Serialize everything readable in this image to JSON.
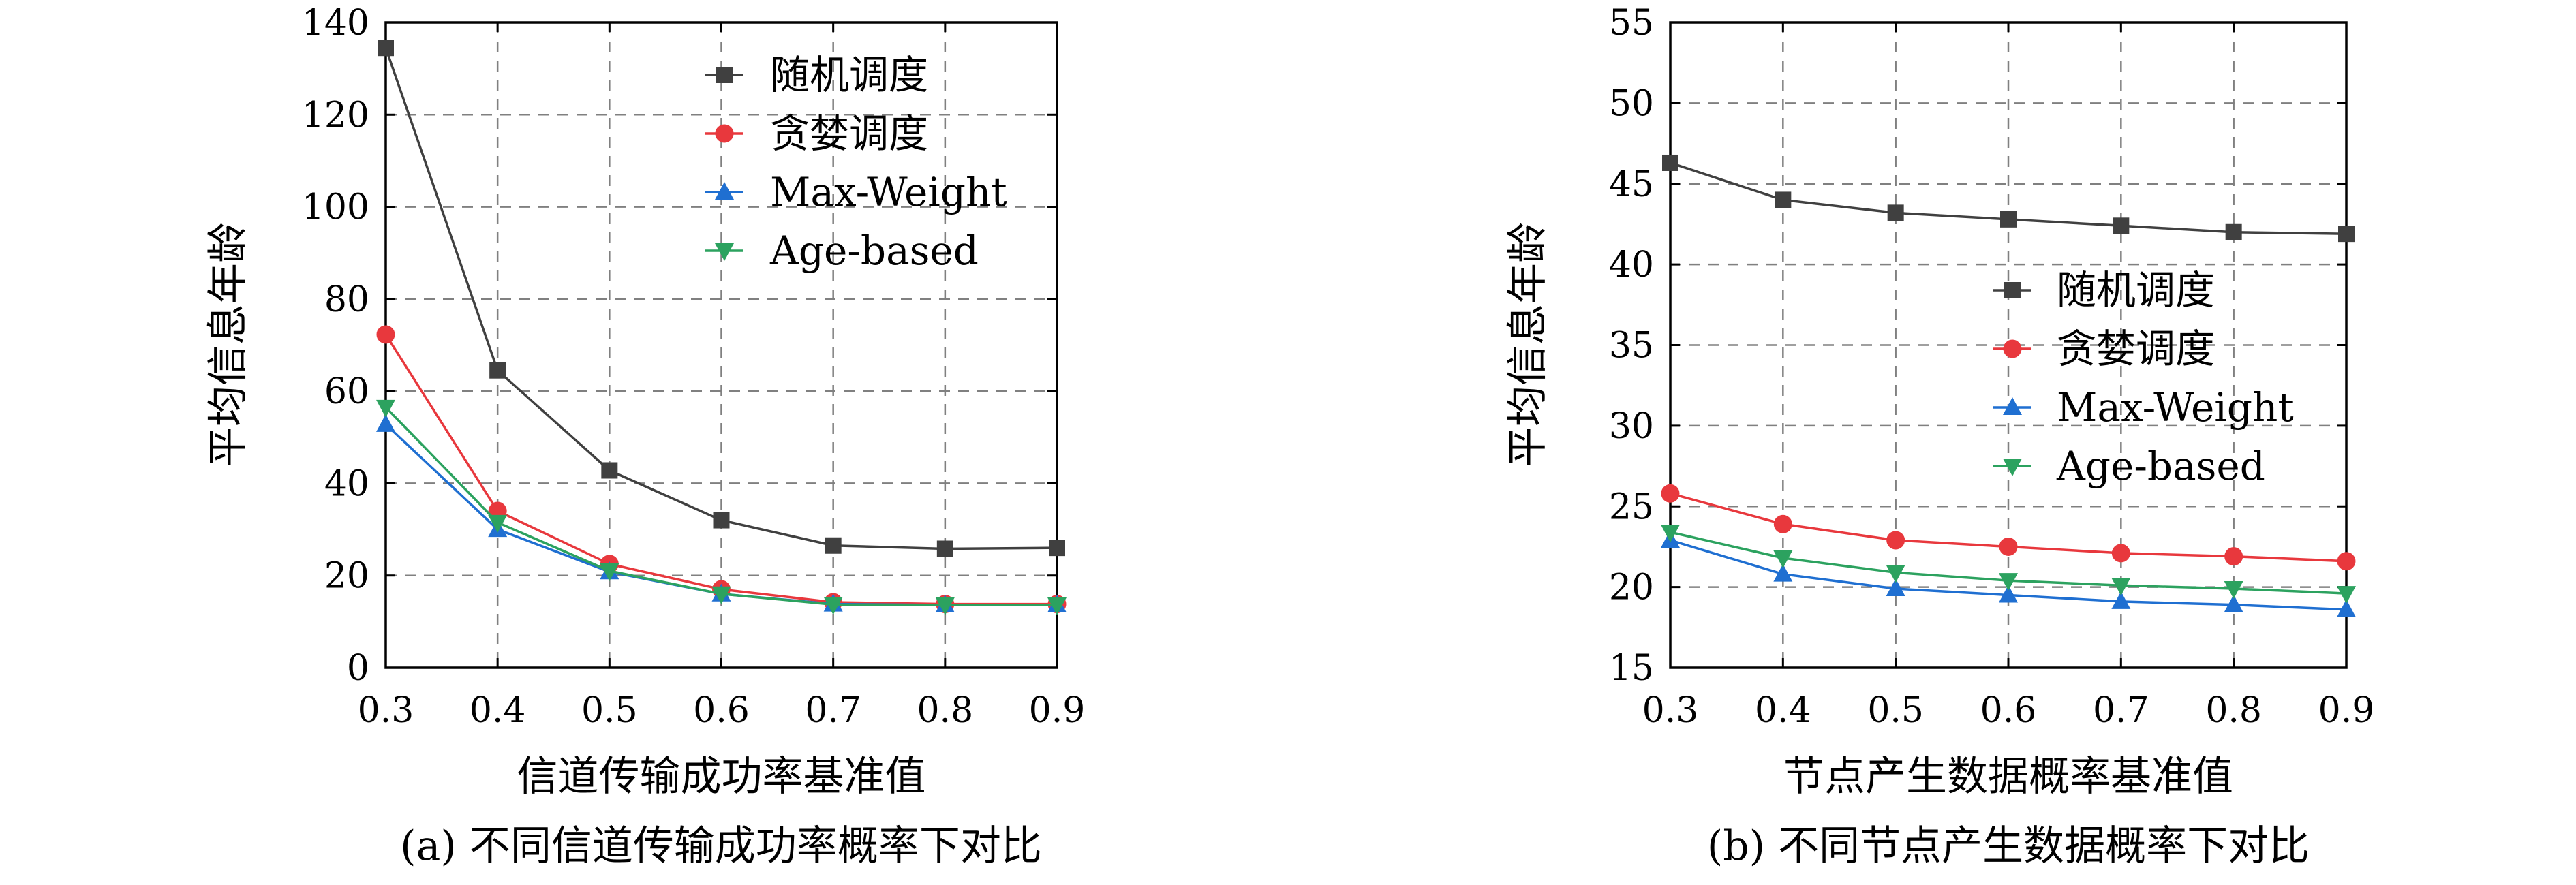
{
  "chart_data": [
    {
      "type": "line",
      "caption": "(a) 不同信道传输成功率概率下对比",
      "xlabel": "信道传输成功率基准值",
      "ylabel": "平均信息年龄",
      "x": [
        0.3,
        0.4,
        0.5,
        0.6,
        0.7,
        0.8,
        0.9
      ],
      "x_ticks": [
        "0.3",
        "0.4",
        "0.5",
        "0.6",
        "0.7",
        "0.8",
        "0.9"
      ],
      "ylim": [
        0,
        140
      ],
      "y_ticks": [
        0,
        20,
        40,
        60,
        80,
        100,
        120,
        140
      ],
      "grid": true,
      "legend_position": "top-right",
      "series": [
        {
          "name": "随机调度",
          "color": "#404040",
          "marker": "square",
          "values": [
            134.5,
            64.5,
            42.8,
            32.0,
            26.5,
            25.8,
            26.0
          ]
        },
        {
          "name": "贪婪调度",
          "color": "#e8383d",
          "marker": "circle",
          "values": [
            72.3,
            34.0,
            22.5,
            17.0,
            14.2,
            13.8,
            13.8
          ]
        },
        {
          "name": "Max-Weight",
          "color": "#1f6fd1",
          "marker": "triangle-up",
          "values": [
            52.8,
            30.0,
            20.8,
            16.0,
            13.8,
            13.6,
            13.6
          ]
        },
        {
          "name": "Age-based",
          "color": "#2ca25f",
          "marker": "triangle-down",
          "values": [
            56.5,
            31.5,
            21.0,
            16.0,
            13.7,
            13.6,
            13.6
          ]
        }
      ]
    },
    {
      "type": "line",
      "caption": "(b) 不同节点产生数据概率下对比",
      "xlabel": "节点产生数据概率基准值",
      "ylabel": "平均信息年龄",
      "x": [
        0.3,
        0.4,
        0.5,
        0.6,
        0.7,
        0.8,
        0.9
      ],
      "x_ticks": [
        "0.3",
        "0.4",
        "0.5",
        "0.6",
        "0.7",
        "0.8",
        "0.9"
      ],
      "ylim": [
        15,
        55
      ],
      "y_ticks": [
        15,
        20,
        25,
        30,
        35,
        40,
        45,
        50,
        55
      ],
      "grid": true,
      "legend_position": "center-right",
      "series": [
        {
          "name": "随机调度",
          "color": "#404040",
          "marker": "square",
          "values": [
            46.3,
            44.0,
            43.2,
            42.8,
            42.4,
            42.0,
            41.9
          ]
        },
        {
          "name": "贪婪调度",
          "color": "#e8383d",
          "marker": "circle",
          "values": [
            25.8,
            23.9,
            22.9,
            22.5,
            22.1,
            21.9,
            21.6
          ]
        },
        {
          "name": "Max-Weight",
          "color": "#1f6fd1",
          "marker": "triangle-up",
          "values": [
            22.9,
            20.8,
            19.9,
            19.5,
            19.1,
            18.9,
            18.6
          ]
        },
        {
          "name": "Age-based",
          "color": "#2ca25f",
          "marker": "triangle-down",
          "values": [
            23.4,
            21.8,
            20.9,
            20.4,
            20.1,
            19.9,
            19.6
          ]
        }
      ]
    }
  ]
}
